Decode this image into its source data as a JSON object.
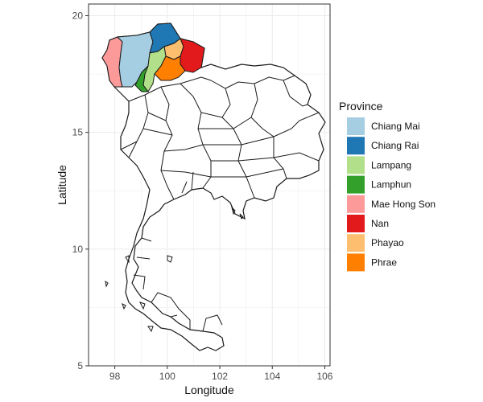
{
  "chart_data": {
    "type": "choropleth map",
    "xlabel": "Longitude",
    "ylabel": "Latitude",
    "xlim": [
      97,
      106.2
    ],
    "ylim": [
      5,
      20.5
    ],
    "x_ticks": [
      "98",
      "100",
      "102",
      "104",
      "106"
    ],
    "y_ticks": [
      "5",
      "10",
      "15",
      "20"
    ],
    "grid": true,
    "legend": {
      "title": "Province",
      "placement": "right",
      "entries": [
        {
          "name": "Chiang Mai",
          "color": "#a6cee3"
        },
        {
          "name": "Chiang Rai",
          "color": "#1f78b4"
        },
        {
          "name": "Lampang",
          "color": "#b2df8a"
        },
        {
          "name": "Lamphun",
          "color": "#33a02c"
        },
        {
          "name": "Mae Hong Son",
          "color": "#fb9a99"
        },
        {
          "name": "Nan",
          "color": "#e31a1c"
        },
        {
          "name": "Phayao",
          "color": "#fdbf6f"
        },
        {
          "name": "Phrae",
          "color": "#ff7f00"
        }
      ]
    },
    "colors": {
      "panel_border": "#333333",
      "grid": "#ebebeb",
      "country_outline": "#1a1a1a",
      "country_fill": "#ffffff"
    }
  }
}
